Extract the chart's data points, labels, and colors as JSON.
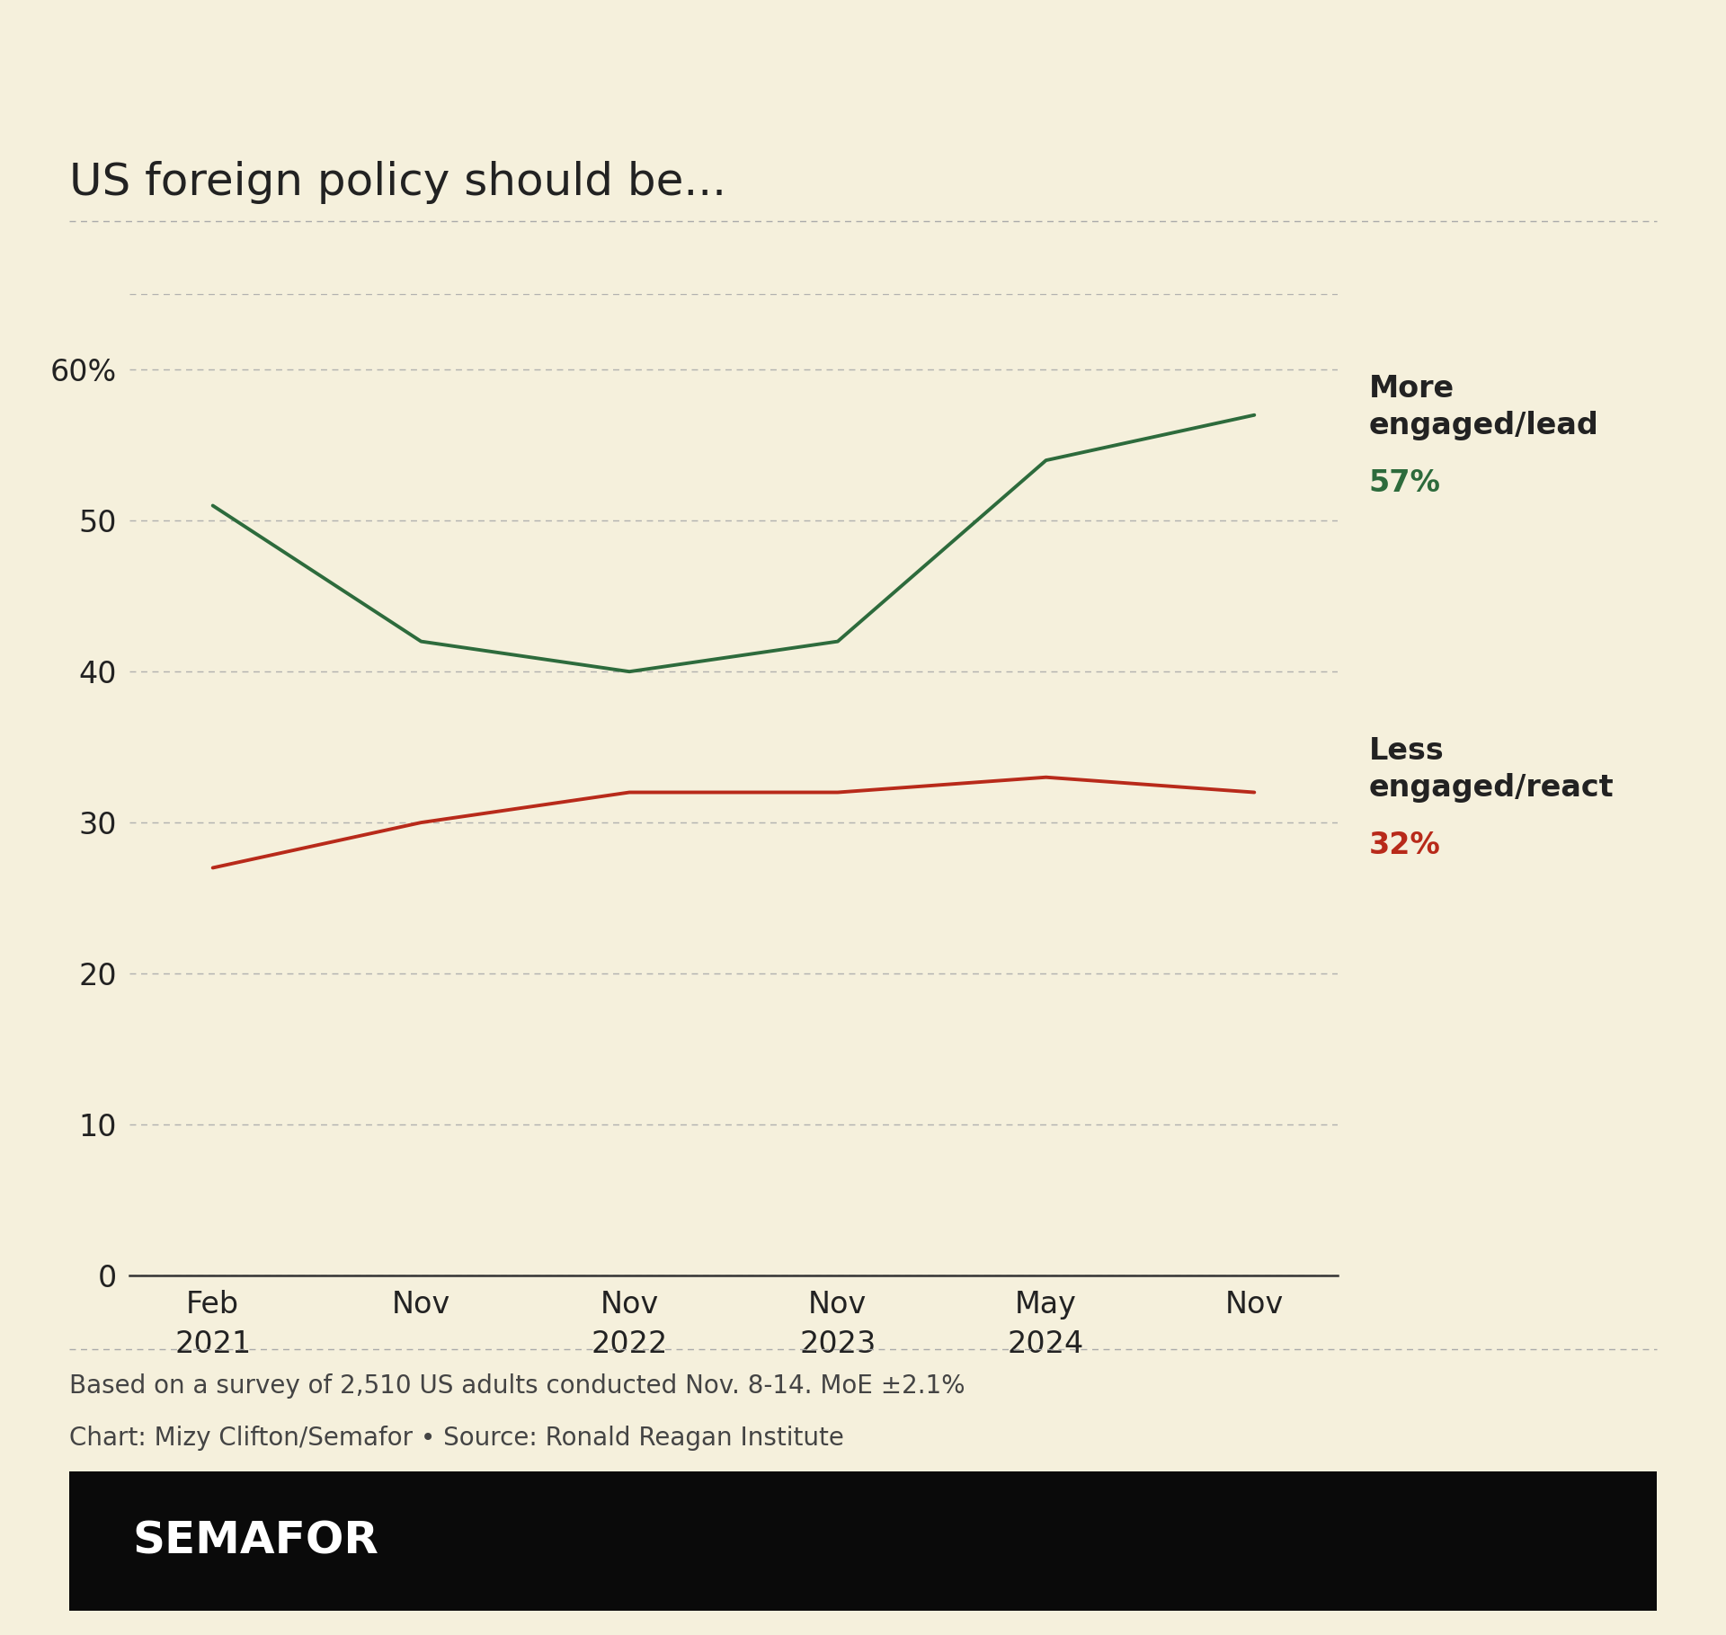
{
  "title": "US foreign policy should be...",
  "background_color": "#f5f0dc",
  "plot_bg_color": "#f5f0dc",
  "green_color": "#2d6b3c",
  "red_color": "#b82a1a",
  "x_labels_line1": [
    "Feb",
    "Nov",
    "Nov",
    "Nov",
    "May",
    "Nov"
  ],
  "x_labels_line2": [
    "2021",
    "",
    "2022",
    "2023",
    "2024",
    ""
  ],
  "x_positions": [
    0,
    1,
    2,
    3,
    4,
    5
  ],
  "green_values": [
    51,
    42,
    40,
    42,
    54,
    57
  ],
  "red_values": [
    27,
    30,
    32,
    32,
    33,
    32
  ],
  "ylim": [
    0,
    65
  ],
  "yticks": [
    0,
    10,
    20,
    30,
    40,
    50,
    60
  ],
  "green_label_text": "More\nengaged/lead",
  "green_label_pct": "57%",
  "red_label_text": "Less\nengaged/react",
  "red_label_pct": "32%",
  "footnote1": "Based on a survey of 2,510 US adults conducted Nov. 8-14. MoE ±2.1%",
  "footnote2": "Chart: Mizy Clifton/Semafor • Source: Ronald Reagan Institute",
  "semafor_label": "SEMAFOR",
  "grid_color": "#aaaaaa",
  "axis_color": "#333333",
  "text_color": "#222222",
  "footnote_color": "#444444",
  "line_width": 2.8
}
